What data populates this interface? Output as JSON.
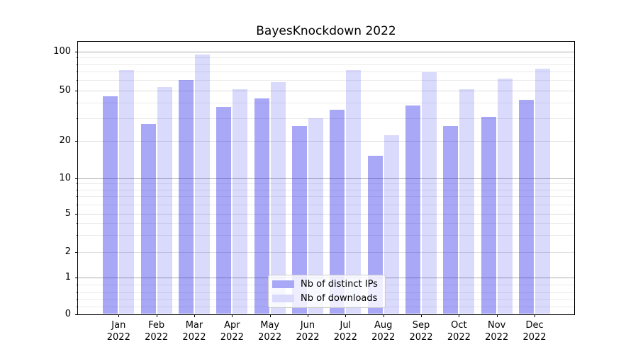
{
  "title": "BayesKnockdown 2022",
  "chart_data": {
    "type": "bar",
    "title": "BayesKnockdown 2022",
    "categories": [
      "Jan",
      "Feb",
      "Mar",
      "Apr",
      "May",
      "Jun",
      "Jul",
      "Aug",
      "Sep",
      "Oct",
      "Nov",
      "Dec"
    ],
    "year": "2022",
    "series": [
      {
        "name": "Nb of distinct IPs",
        "values": [
          45,
          27,
          60,
          37,
          43,
          26,
          35,
          15,
          38,
          26,
          31,
          42
        ],
        "fill": "rgba(25,25,235,0.38)",
        "swatch_color": "#a8a8f7"
      },
      {
        "name": "Nb of downloads",
        "values": [
          72,
          53,
          95,
          51,
          58,
          30,
          72,
          22,
          69,
          51,
          62,
          74
        ],
        "fill": "rgba(25,25,235,0.16)",
        "swatch_color": "#dadafc"
      }
    ],
    "xlabel": "",
    "ylabel": "",
    "yscale": "symlog",
    "ylim": [
      0,
      120
    ],
    "yticks": [
      0,
      1,
      2,
      5,
      10,
      20,
      50,
      100
    ],
    "decade_ticks": [
      1,
      10,
      100
    ],
    "minor_gridlines": [
      0.2,
      0.4,
      0.6,
      0.8,
      3,
      4,
      6,
      7,
      8,
      9,
      30,
      40,
      60,
      70,
      80,
      90
    ],
    "grid": true,
    "legend_position": "lower center"
  },
  "colors": {
    "bar_dark": "#a8a8f7",
    "bar_light": "#dadafc",
    "grid_decade": "#ababab",
    "grid_major": "#dcdcdc",
    "grid_minor": "#ebebeb",
    "spine": "#000000"
  }
}
